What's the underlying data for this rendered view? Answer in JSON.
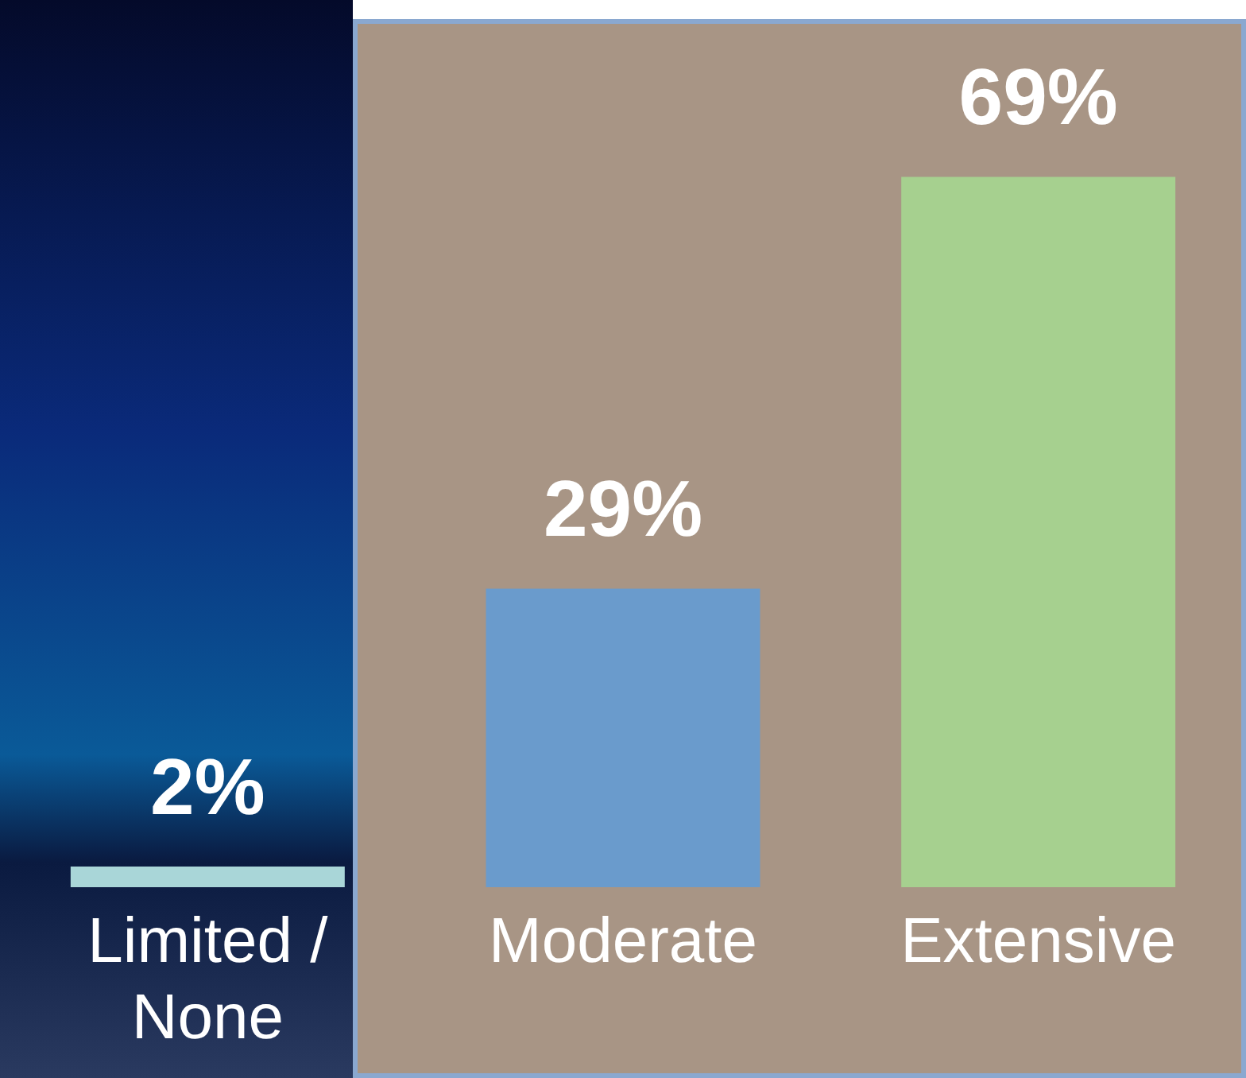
{
  "chart_data": {
    "type": "bar",
    "categories": [
      "Limited / None",
      "Moderate",
      "Extensive"
    ],
    "values": [
      2,
      29,
      69
    ],
    "colors": [
      "#a9d6d8",
      "#6a9bcc",
      "#a6d08f"
    ],
    "value_labels": [
      "2%",
      "29%",
      "69%"
    ],
    "grid": false,
    "legend": false
  }
}
